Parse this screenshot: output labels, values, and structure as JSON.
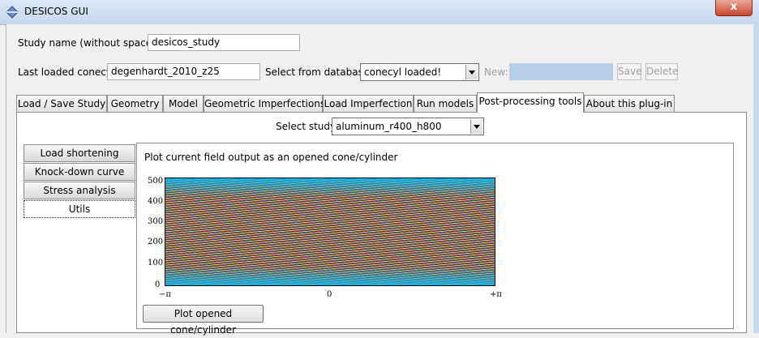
{
  "window": {
    "title": "DESICOS GUI",
    "close_label": "x"
  },
  "study_name": {
    "label": "Study name (without spaces):",
    "value": "desicos_study"
  },
  "conecyl": {
    "label": "Last loaded conecyl:",
    "value": "degenhardt_2010_z25",
    "db_label": "Select from database:",
    "db_value": "conecyl loaded!",
    "new_label": "New:",
    "new_value": "",
    "save_label": "Save",
    "delete_label": "Delete"
  },
  "tabs": [
    "Load / Save Study",
    "Geometry",
    "Model",
    "Geometric Imperfections",
    "Load Imperfection",
    "Run models",
    "Post-processing tools",
    "About this plug-in"
  ],
  "select_study": {
    "label": "Select study:",
    "value": "aluminum_r400_h800"
  },
  "side_tabs": [
    "Load shortening curves",
    "Knock-down curve",
    "Stress analysis",
    "Utils"
  ],
  "panel": {
    "heading": "Plot current field output as an opened cone/cylinder",
    "button_label": "Plot opened cone/cylinder"
  },
  "chart_data": {
    "type": "heatmap",
    "y_ticks": [
      "500",
      "400",
      "300",
      "200",
      "100",
      "0"
    ],
    "x_ticks": [
      "−π",
      "0",
      "+π"
    ],
    "ylim": [
      0,
      520
    ],
    "colormap": "jet"
  }
}
